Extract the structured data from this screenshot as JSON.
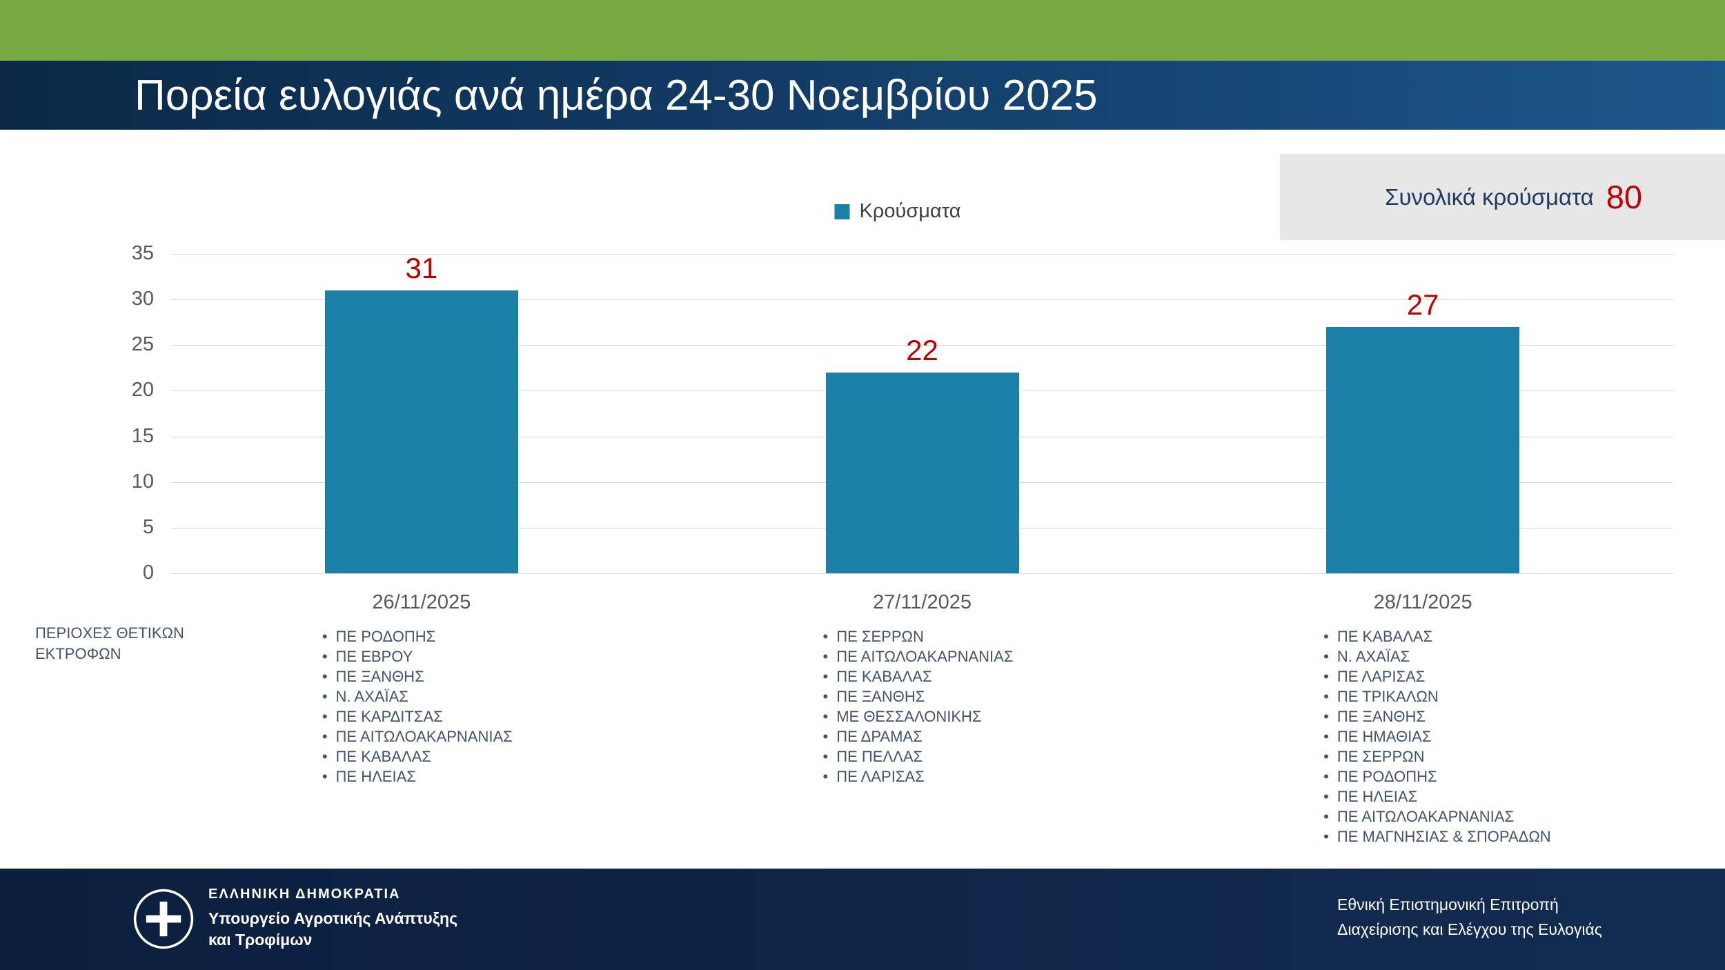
{
  "header": {
    "title": "Πορεία ευλογιάς ανά ημέρα 24-30 Νοεμβρίου 2025"
  },
  "summary": {
    "label": "Συνολικά κρούσματα",
    "value": "80"
  },
  "legend": {
    "label": "Κρούσματα"
  },
  "chart_data": {
    "type": "bar",
    "title": "Πορεία ευλογιάς ανά ημέρα 24-30 Νοεμβρίου 2025",
    "categories": [
      "26/11/2025",
      "27/11/2025",
      "28/11/2025"
    ],
    "series": [
      {
        "name": "Κρούσματα",
        "values": [
          31,
          22,
          27
        ]
      }
    ],
    "total": 80,
    "xlabel": "",
    "ylabel": "",
    "ylim": [
      0,
      35
    ],
    "yticks": [
      0,
      5,
      10,
      15,
      20,
      25,
      30,
      35
    ],
    "grid": true,
    "legend_position": "top",
    "bar_color": "#1b7fa8",
    "data_label_color": "#c00000"
  },
  "regions_label": {
    "line1": "ΠΕΡΙΟΧΕΣ ΘΕΤΙΚΩΝ",
    "line2": "ΕΚΤΡΟΦΩΝ"
  },
  "region_lists": [
    {
      "date": "26/11/2025",
      "items": [
        "ΠΕ ΡΟΔΟΠΗΣ",
        "ΠΕ ΕΒΡΟΥ",
        "ΠΕ ΞΑΝΘΗΣ",
        "Ν. ΑΧΑΪΑΣ",
        "ΠΕ ΚΑΡΔΙΤΣΑΣ",
        "ΠΕ ΑΙΤΩΛΟΑΚΑΡΝΑΝΙΑΣ",
        "ΠΕ ΚΑΒΑΛΑΣ",
        "ΠΕ ΗΛΕΙΑΣ"
      ]
    },
    {
      "date": "27/11/2025",
      "items": [
        "ΠΕ ΣΕΡΡΩΝ",
        "ΠΕ ΑΙΤΩΛΟΑΚΑΡΝΑΝΙΑΣ",
        "ΠΕ ΚΑΒΑΛΑΣ",
        "ΠΕ ΞΑΝΘΗΣ",
        "ΜΕ ΘΕΣΣΑΛΟΝΙΚΗΣ",
        "ΠΕ ΔΡΑΜΑΣ",
        "ΠΕ ΠΕΛΛΑΣ",
        "ΠΕ ΛΑΡΙΣΑΣ"
      ]
    },
    {
      "date": "28/11/2025",
      "items": [
        "ΠΕ ΚΑΒΑΛΑΣ",
        "Ν. ΑΧΑΪΑΣ",
        "ΠΕ ΛΑΡΙΣΑΣ",
        "ΠΕ ΤΡΙΚΑΛΩΝ",
        "ΠΕ ΞΑΝΘΗΣ",
        "ΠΕ ΗΜΑΘΙΑΣ",
        "ΠΕ ΣΕΡΡΩΝ",
        "ΠΕ ΡΟΔΟΠΗΣ",
        "ΠΕ ΗΛΕΙΑΣ",
        "ΠΕ ΑΙΤΩΛΟΑΚΑΡΝΑΝΙΑΣ",
        "ΠΕ ΜΑΓΝΗΣΙΑΣ & ΣΠΟΡΑΔΩΝ"
      ]
    }
  ],
  "footer": {
    "org_name": "ΕΛΛΗΝΙΚΗ ΔΗΜΟΚΡΑΤΙΑ",
    "ministry_line1": "Υπουργείο Αγροτικής Ανάπτυξης",
    "ministry_line2": "και Τροφίμων",
    "committee_line1": "Εθνική Επιστημονική Επιτροπή",
    "committee_line2": "Διαχείρισης και Ελέγχου της Ευλογιάς"
  },
  "colors": {
    "top_accent": "#76a844",
    "header_navy_dark": "#0a2846",
    "header_navy_light": "#1c558a",
    "bar_fill": "#1b7fa8",
    "value_red": "#c00000",
    "summary_box_bg": "#e7e7e7",
    "footer_navy": "#0b1f3e",
    "body_text": "#44546a"
  }
}
